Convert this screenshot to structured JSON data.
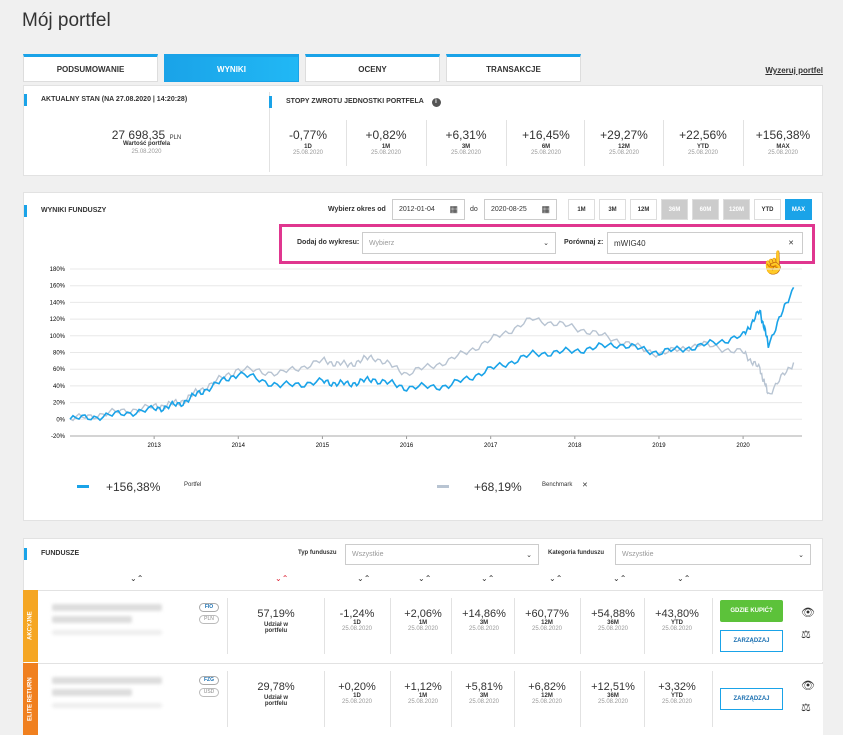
{
  "page": {
    "title": "Mój portfel"
  },
  "tabs": [
    {
      "label": "PODSUMOWANIE"
    },
    {
      "label": "WYNIKI"
    },
    {
      "label": "OCENY"
    },
    {
      "label": "TRANSAKCJE"
    }
  ],
  "reset_link": "Wyzeruj portfel",
  "summary": {
    "current_header": "AKTUALNY STAN (NA 27.08.2020 | 14:20:28)",
    "value": "27 698,35",
    "currency": "PLN",
    "value_label": "Wartość portfela",
    "value_date": "25.08.2020",
    "returns_header": "STOPY ZWROTU JEDNOSTKI PORTFELA",
    "returns": [
      {
        "value": "-0,77%",
        "label": "1D",
        "date": "25.08.2020"
      },
      {
        "value": "+0,82%",
        "label": "1M",
        "date": "25.08.2020"
      },
      {
        "value": "+6,31%",
        "label": "3M",
        "date": "25.08.2020"
      },
      {
        "value": "+16,45%",
        "label": "6M",
        "date": "25.08.2020"
      },
      {
        "value": "+29,27%",
        "label": "12M",
        "date": "25.08.2020"
      },
      {
        "value": "+22,56%",
        "label": "YTD",
        "date": "25.08.2020"
      },
      {
        "value": "+156,38%",
        "label": "MAX",
        "date": "25.08.2020"
      }
    ]
  },
  "results": {
    "header": "WYNIKI FUNDUSZY",
    "period_label": "Wybierz okres od",
    "date_from": "2012-01-04",
    "to_label": "do",
    "date_to": "2020-08-25",
    "periods": [
      "1M",
      "3M",
      "12M",
      "36M",
      "60M",
      "120M",
      "YTD",
      "MAX"
    ],
    "add_label": "Dodaj do wykresu:",
    "add_placeholder": "Wybierz",
    "compare_label": "Porównaj z:",
    "compare_value": "mWIG40",
    "legend": [
      {
        "value": "+156,38%",
        "name": "Portfel",
        "color": "#1aa3e8"
      },
      {
        "value": "+68,19%",
        "name": "Benchmark",
        "color": "#b8c4d2",
        "remove": "✕"
      }
    ]
  },
  "chart_data": {
    "type": "line",
    "ylim": [
      -20,
      180
    ],
    "yticks": [
      "180%",
      "160%",
      "140%",
      "120%",
      "100%",
      "80%",
      "60%",
      "40%",
      "20%",
      "0%",
      "-20%"
    ],
    "xticks": [
      "2013",
      "2014",
      "2015",
      "2016",
      "2017",
      "2018",
      "2019",
      "2020"
    ],
    "x": [
      2012.0,
      2012.5,
      2013.0,
      2013.3,
      2013.6,
      2014.0,
      2014.5,
      2015.0,
      2015.3,
      2015.6,
      2016.0,
      2016.5,
      2017.0,
      2017.5,
      2018.0,
      2018.5,
      2019.0,
      2019.5,
      2020.0,
      2020.2,
      2020.3,
      2020.6
    ],
    "series": [
      {
        "name": "Portfel",
        "color": "#1aa3e8",
        "values": [
          0,
          5,
          12,
          18,
          35,
          55,
          40,
          45,
          42,
          48,
          38,
          40,
          60,
          78,
          82,
          90,
          80,
          88,
          100,
          130,
          90,
          158
        ]
      },
      {
        "name": "Benchmark",
        "color": "#b8c4d2",
        "values": [
          0,
          8,
          15,
          20,
          38,
          60,
          55,
          70,
          65,
          75,
          55,
          70,
          95,
          120,
          110,
          95,
          78,
          90,
          80,
          60,
          30,
          68
        ]
      }
    ]
  },
  "funds": {
    "header": "FUNDUSZE",
    "type_label": "Typ funduszu",
    "type_value": "Wszystkie",
    "category_label": "Kategoria funduszu",
    "category_value": "Wszystkie",
    "rows": [
      {
        "tag": "AKCYJNE",
        "tag_color": "#f5a623",
        "badge1": "FIO",
        "badge2": "PLN",
        "share": "57,19%",
        "share_label": "Udział w portfelu",
        "stats": [
          {
            "value": "-1,24%",
            "label": "1D",
            "date": "25.08.2020"
          },
          {
            "value": "+2,06%",
            "label": "1M",
            "date": "25.08.2020"
          },
          {
            "value": "+14,86%",
            "label": "3M",
            "date": "25.08.2020"
          },
          {
            "value": "+60,77%",
            "label": "12M",
            "date": "25.08.2020"
          },
          {
            "value": "+54,88%",
            "label": "36M",
            "date": "25.08.2020"
          },
          {
            "value": "+43,80%",
            "label": "YTD",
            "date": "25.08.2020"
          }
        ],
        "buy": "GDZIE KUPIĆ?",
        "manage": "ZARZĄDZAJ"
      },
      {
        "tag": "ELITE RETURN",
        "tag_color": "#f0801f",
        "badge1": "FZG",
        "badge2": "USD",
        "share": "29,78%",
        "share_label": "Udział w portfelu",
        "stats": [
          {
            "value": "+0,20%",
            "label": "1D",
            "date": "25.08.2020"
          },
          {
            "value": "+1,12%",
            "label": "1M",
            "date": "25.08.2020"
          },
          {
            "value": "+5,81%",
            "label": "3M",
            "date": "25.08.2020"
          },
          {
            "value": "+6,82%",
            "label": "12M",
            "date": "25.08.2020"
          },
          {
            "value": "+12,51%",
            "label": "36M",
            "date": "25.08.2020"
          },
          {
            "value": "+3,32%",
            "label": "YTD",
            "date": "25.08.2020"
          }
        ],
        "manage": "ZARZĄDZAJ"
      }
    ]
  }
}
